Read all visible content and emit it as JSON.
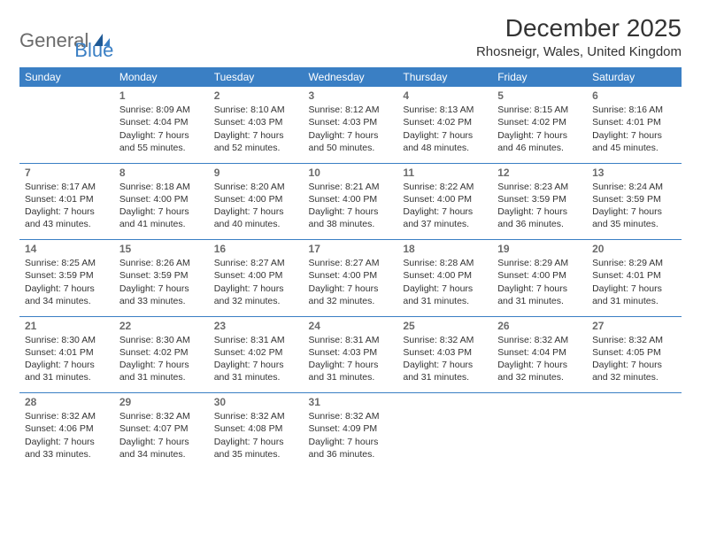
{
  "logo": {
    "general": "General",
    "blue": "Blue"
  },
  "title": {
    "month": "December 2025",
    "location": "Rhosneigr, Wales, United Kingdom"
  },
  "colors": {
    "header_bg": "#3a7fc4",
    "text": "#333333",
    "daynum": "#6b6b6b",
    "rule": "#3a7fc4"
  },
  "fonts": {
    "title_pt": 28,
    "location_pt": 15,
    "header_pt": 12,
    "daynum_pt": 12,
    "body_pt": 10.5
  },
  "headers": [
    "Sunday",
    "Monday",
    "Tuesday",
    "Wednesday",
    "Thursday",
    "Friday",
    "Saturday"
  ],
  "weeks": [
    [
      null,
      {
        "n": "1",
        "sr": "Sunrise: 8:09 AM",
        "ss": "Sunset: 4:04 PM",
        "d1": "Daylight: 7 hours",
        "d2": "and 55 minutes."
      },
      {
        "n": "2",
        "sr": "Sunrise: 8:10 AM",
        "ss": "Sunset: 4:03 PM",
        "d1": "Daylight: 7 hours",
        "d2": "and 52 minutes."
      },
      {
        "n": "3",
        "sr": "Sunrise: 8:12 AM",
        "ss": "Sunset: 4:03 PM",
        "d1": "Daylight: 7 hours",
        "d2": "and 50 minutes."
      },
      {
        "n": "4",
        "sr": "Sunrise: 8:13 AM",
        "ss": "Sunset: 4:02 PM",
        "d1": "Daylight: 7 hours",
        "d2": "and 48 minutes."
      },
      {
        "n": "5",
        "sr": "Sunrise: 8:15 AM",
        "ss": "Sunset: 4:02 PM",
        "d1": "Daylight: 7 hours",
        "d2": "and 46 minutes."
      },
      {
        "n": "6",
        "sr": "Sunrise: 8:16 AM",
        "ss": "Sunset: 4:01 PM",
        "d1": "Daylight: 7 hours",
        "d2": "and 45 minutes."
      }
    ],
    [
      {
        "n": "7",
        "sr": "Sunrise: 8:17 AM",
        "ss": "Sunset: 4:01 PM",
        "d1": "Daylight: 7 hours",
        "d2": "and 43 minutes."
      },
      {
        "n": "8",
        "sr": "Sunrise: 8:18 AM",
        "ss": "Sunset: 4:00 PM",
        "d1": "Daylight: 7 hours",
        "d2": "and 41 minutes."
      },
      {
        "n": "9",
        "sr": "Sunrise: 8:20 AM",
        "ss": "Sunset: 4:00 PM",
        "d1": "Daylight: 7 hours",
        "d2": "and 40 minutes."
      },
      {
        "n": "10",
        "sr": "Sunrise: 8:21 AM",
        "ss": "Sunset: 4:00 PM",
        "d1": "Daylight: 7 hours",
        "d2": "and 38 minutes."
      },
      {
        "n": "11",
        "sr": "Sunrise: 8:22 AM",
        "ss": "Sunset: 4:00 PM",
        "d1": "Daylight: 7 hours",
        "d2": "and 37 minutes."
      },
      {
        "n": "12",
        "sr": "Sunrise: 8:23 AM",
        "ss": "Sunset: 3:59 PM",
        "d1": "Daylight: 7 hours",
        "d2": "and 36 minutes."
      },
      {
        "n": "13",
        "sr": "Sunrise: 8:24 AM",
        "ss": "Sunset: 3:59 PM",
        "d1": "Daylight: 7 hours",
        "d2": "and 35 minutes."
      }
    ],
    [
      {
        "n": "14",
        "sr": "Sunrise: 8:25 AM",
        "ss": "Sunset: 3:59 PM",
        "d1": "Daylight: 7 hours",
        "d2": "and 34 minutes."
      },
      {
        "n": "15",
        "sr": "Sunrise: 8:26 AM",
        "ss": "Sunset: 3:59 PM",
        "d1": "Daylight: 7 hours",
        "d2": "and 33 minutes."
      },
      {
        "n": "16",
        "sr": "Sunrise: 8:27 AM",
        "ss": "Sunset: 4:00 PM",
        "d1": "Daylight: 7 hours",
        "d2": "and 32 minutes."
      },
      {
        "n": "17",
        "sr": "Sunrise: 8:27 AM",
        "ss": "Sunset: 4:00 PM",
        "d1": "Daylight: 7 hours",
        "d2": "and 32 minutes."
      },
      {
        "n": "18",
        "sr": "Sunrise: 8:28 AM",
        "ss": "Sunset: 4:00 PM",
        "d1": "Daylight: 7 hours",
        "d2": "and 31 minutes."
      },
      {
        "n": "19",
        "sr": "Sunrise: 8:29 AM",
        "ss": "Sunset: 4:00 PM",
        "d1": "Daylight: 7 hours",
        "d2": "and 31 minutes."
      },
      {
        "n": "20",
        "sr": "Sunrise: 8:29 AM",
        "ss": "Sunset: 4:01 PM",
        "d1": "Daylight: 7 hours",
        "d2": "and 31 minutes."
      }
    ],
    [
      {
        "n": "21",
        "sr": "Sunrise: 8:30 AM",
        "ss": "Sunset: 4:01 PM",
        "d1": "Daylight: 7 hours",
        "d2": "and 31 minutes."
      },
      {
        "n": "22",
        "sr": "Sunrise: 8:30 AM",
        "ss": "Sunset: 4:02 PM",
        "d1": "Daylight: 7 hours",
        "d2": "and 31 minutes."
      },
      {
        "n": "23",
        "sr": "Sunrise: 8:31 AM",
        "ss": "Sunset: 4:02 PM",
        "d1": "Daylight: 7 hours",
        "d2": "and 31 minutes."
      },
      {
        "n": "24",
        "sr": "Sunrise: 8:31 AM",
        "ss": "Sunset: 4:03 PM",
        "d1": "Daylight: 7 hours",
        "d2": "and 31 minutes."
      },
      {
        "n": "25",
        "sr": "Sunrise: 8:32 AM",
        "ss": "Sunset: 4:03 PM",
        "d1": "Daylight: 7 hours",
        "d2": "and 31 minutes."
      },
      {
        "n": "26",
        "sr": "Sunrise: 8:32 AM",
        "ss": "Sunset: 4:04 PM",
        "d1": "Daylight: 7 hours",
        "d2": "and 32 minutes."
      },
      {
        "n": "27",
        "sr": "Sunrise: 8:32 AM",
        "ss": "Sunset: 4:05 PM",
        "d1": "Daylight: 7 hours",
        "d2": "and 32 minutes."
      }
    ],
    [
      {
        "n": "28",
        "sr": "Sunrise: 8:32 AM",
        "ss": "Sunset: 4:06 PM",
        "d1": "Daylight: 7 hours",
        "d2": "and 33 minutes."
      },
      {
        "n": "29",
        "sr": "Sunrise: 8:32 AM",
        "ss": "Sunset: 4:07 PM",
        "d1": "Daylight: 7 hours",
        "d2": "and 34 minutes."
      },
      {
        "n": "30",
        "sr": "Sunrise: 8:32 AM",
        "ss": "Sunset: 4:08 PM",
        "d1": "Daylight: 7 hours",
        "d2": "and 35 minutes."
      },
      {
        "n": "31",
        "sr": "Sunrise: 8:32 AM",
        "ss": "Sunset: 4:09 PM",
        "d1": "Daylight: 7 hours",
        "d2": "and 36 minutes."
      },
      null,
      null,
      null
    ]
  ]
}
